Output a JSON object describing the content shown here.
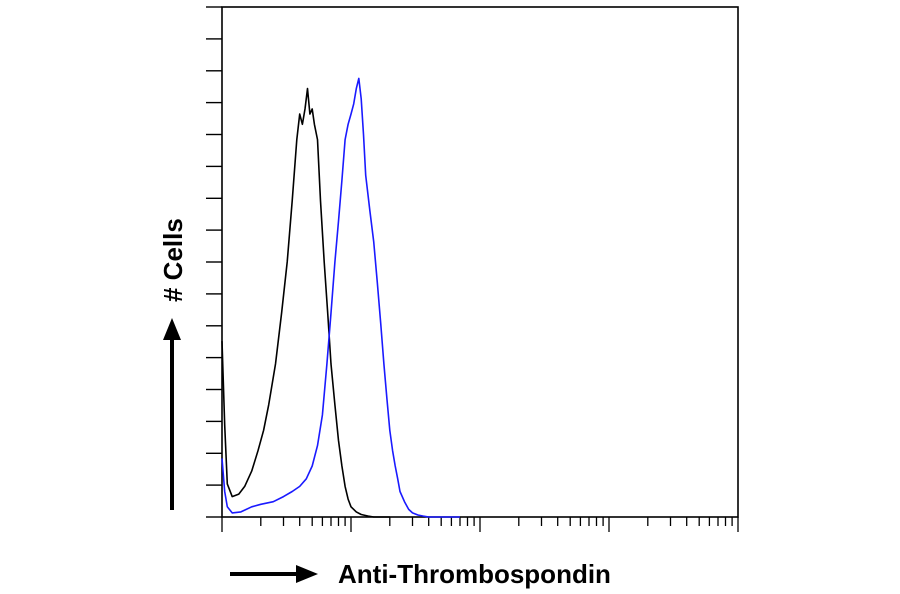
{
  "chart_data": {
    "type": "line",
    "title": "",
    "xlabel": "Anti-Thrombospondin",
    "ylabel": "# Cells",
    "x_scale": "log",
    "xlim": [
      1,
      10000
    ],
    "ylim": [
      0,
      100
    ],
    "grid": false,
    "legend": "none",
    "series": [
      {
        "color": "#000000",
        "x": [
          1.0,
          1.05,
          1.1,
          1.2,
          1.35,
          1.5,
          1.7,
          1.9,
          2.1,
          2.3,
          2.6,
          2.9,
          3.2,
          3.5,
          3.8,
          4.0,
          4.2,
          4.4,
          4.6,
          4.8,
          5.0,
          5.2,
          5.5,
          5.8,
          6.2,
          6.6,
          7.0,
          7.5,
          8.0,
          8.5,
          9.0,
          9.5,
          10.0,
          11.0,
          12.0,
          13.5,
          15.0,
          17.0,
          20.0
        ],
        "y": [
          34.5,
          18.0,
          6.5,
          4.0,
          4.5,
          6.0,
          9.0,
          13.0,
          17.0,
          22.0,
          30.0,
          40.0,
          50.0,
          62.0,
          74.0,
          79.0,
          77.0,
          80.0,
          84.0,
          79.0,
          80.0,
          77.0,
          74.0,
          62.0,
          50.0,
          40.0,
          30.0,
          22.0,
          15.0,
          10.0,
          6.0,
          3.5,
          2.0,
          1.0,
          0.5,
          0.2,
          0.0,
          0.0,
          0.0
        ]
      },
      {
        "color": "#1a1aff",
        "x": [
          1.0,
          1.05,
          1.1,
          1.2,
          1.4,
          1.7,
          2.0,
          2.5,
          3.0,
          3.5,
          4.0,
          4.5,
          5.0,
          5.5,
          6.0,
          6.5,
          7.0,
          7.5,
          8.0,
          8.5,
          9.0,
          9.5,
          10.0,
          10.5,
          11.0,
          11.5,
          12.0,
          12.5,
          13.0,
          14.0,
          15.0,
          16.0,
          17.0,
          18.0,
          19.0,
          20.0,
          21.0,
          22.0,
          23.0,
          24.0,
          26.0,
          28.0,
          30.0,
          33.0,
          36.0,
          40.0,
          50.0,
          70.0
        ],
        "y": [
          11.5,
          5.0,
          2.0,
          0.8,
          1.0,
          2.0,
          2.5,
          3.0,
          4.0,
          5.0,
          6.0,
          7.5,
          10.0,
          14.0,
          20.0,
          30.0,
          40.0,
          50.0,
          58.0,
          66.0,
          74.0,
          77.0,
          79.0,
          81.0,
          84.0,
          86.0,
          82.0,
          75.0,
          67.0,
          60.0,
          54.0,
          46.0,
          38.0,
          30.0,
          23.0,
          17.0,
          13.0,
          10.0,
          7.5,
          5.0,
          3.0,
          1.5,
          0.8,
          0.4,
          0.2,
          0.0,
          0.0,
          0.0
        ]
      }
    ]
  }
}
